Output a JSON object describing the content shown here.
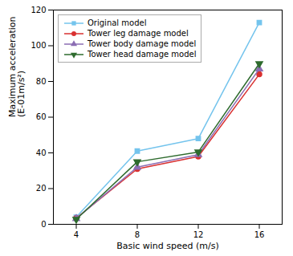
{
  "chart_data": {
    "type": "line",
    "xlabel": "Basic wind speed (m/s)",
    "ylabel": "Maximum acceleration\n(E-01m/s²)",
    "x": [
      4,
      8,
      12,
      16
    ],
    "series": [
      {
        "name": "Original model",
        "color": "#74c4ed",
        "marker": "square",
        "values": [
          4,
          41,
          48,
          113
        ]
      },
      {
        "name": "Tower leg damage model",
        "color": "#d93030",
        "marker": "circle",
        "values": [
          3.5,
          31,
          38,
          84
        ]
      },
      {
        "name": "Tower body damage model",
        "color": "#8b6db3",
        "marker": "triangle-up",
        "values": [
          3.2,
          32,
          39,
          87
        ]
      },
      {
        "name": "Tower head damage model",
        "color": "#2e6b2e",
        "marker": "triangle-down",
        "values": [
          2.8,
          35,
          40.5,
          90
        ]
      }
    ],
    "xlim": [
      2.5,
      17.5
    ],
    "ylim": [
      0,
      120
    ],
    "xticks": [
      4,
      8,
      12,
      16
    ],
    "yticks": [
      0,
      20,
      40,
      60,
      80,
      100,
      120
    ],
    "grid": false,
    "legend": "upper left"
  }
}
